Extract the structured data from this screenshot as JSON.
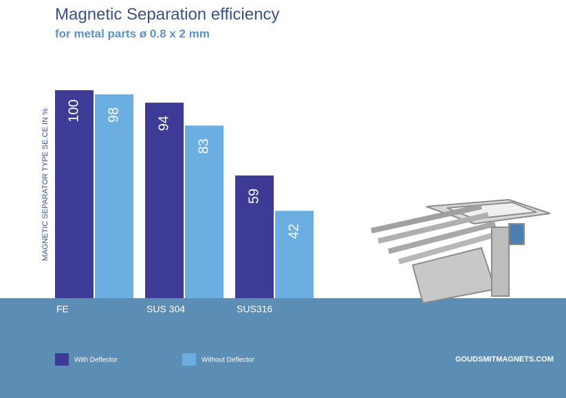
{
  "chart_data": {
    "type": "bar",
    "title": "Magnetic Separation efficiency",
    "subtitle": "for metal parts ø 0.8 x 2 mm",
    "y_label": "MAGNETIC SEPARATOR TYPE SE.CE IN %",
    "categories": [
      "FE",
      "SUS 304",
      "SUS316"
    ],
    "series": [
      {
        "name": "With Deflector",
        "color": "#3d3b96",
        "values": [
          100,
          94,
          59
        ]
      },
      {
        "name": "Without Deflector",
        "color": "#6aaee2",
        "values": [
          98,
          83,
          42
        ]
      }
    ],
    "ylim": [
      0,
      100
    ],
    "source": "GOUDSMITMAGNETS.COM"
  }
}
